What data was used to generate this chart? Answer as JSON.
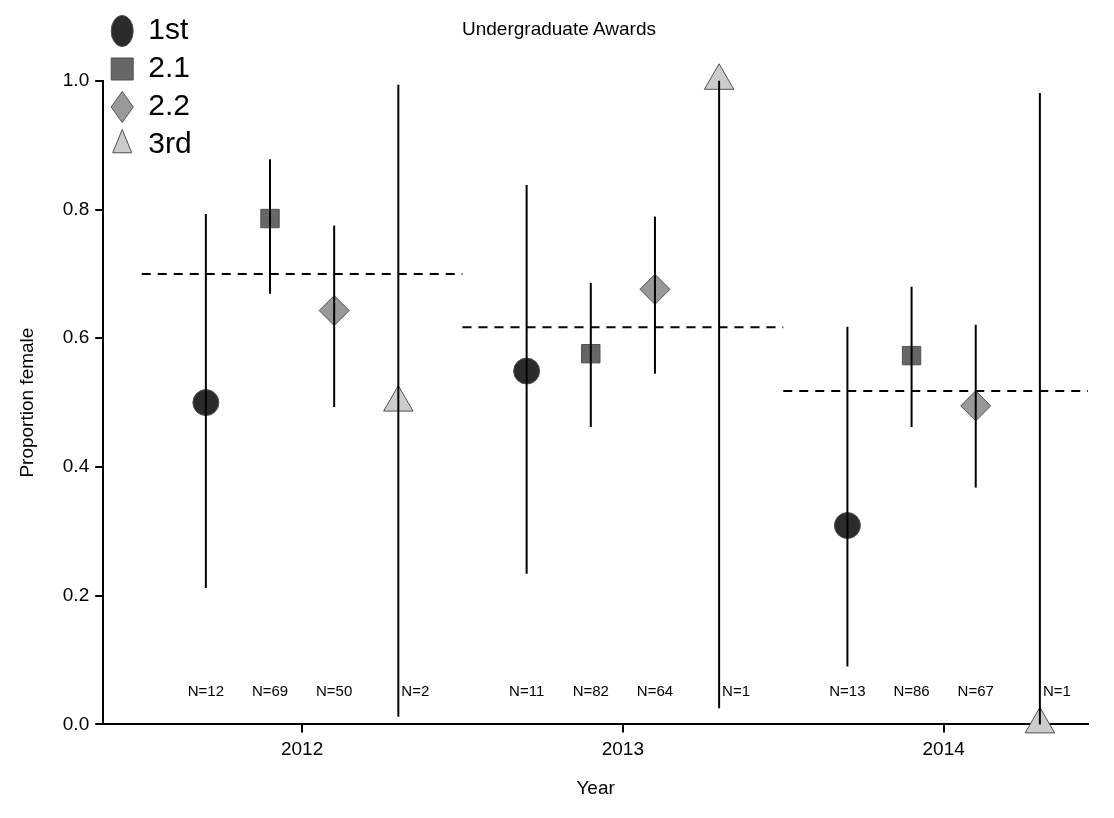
{
  "chart_data": {
    "type": "scatter",
    "title": "Undergraduate Awards",
    "xlabel": "Year",
    "ylabel": "Proportion female",
    "xlim": [
      2011.38,
      2014.45
    ],
    "xticks": [
      2012,
      2013,
      2014
    ],
    "ylim": [
      0,
      1
    ],
    "yticks": [
      {
        "value": 0,
        "label": "0.0"
      },
      0.2,
      0.4,
      0.6,
      0.8,
      {
        "value": 1,
        "label": "1.0"
      }
    ],
    "grid": false,
    "legend": "top left",
    "series": [
      {
        "name": "1st",
        "marker": "circle",
        "color": "#2b2b2b",
        "x": [
          2011.7,
          2012.7,
          2013.7
        ],
        "values": [
          0.5,
          0.549,
          0.309
        ],
        "errors": [
          [
            0.212,
            0.793
          ],
          [
            0.234,
            0.838
          ],
          [
            0.09,
            0.618
          ]
        ]
      },
      {
        "name": "2.1",
        "marker": "square",
        "color": "#666666",
        "x": [
          2011.9,
          2012.9,
          2013.9
        ],
        "values": [
          0.786,
          0.576,
          0.573
        ],
        "errors": [
          [
            0.669,
            0.878
          ],
          [
            0.462,
            0.686
          ],
          [
            0.462,
            0.68
          ]
        ]
      },
      {
        "name": "2.2",
        "marker": "diamond",
        "color": "#999999",
        "x": [
          2012.1,
          2013.1,
          2014.1
        ],
        "values": [
          0.643,
          0.676,
          0.495
        ],
        "errors": [
          [
            0.493,
            0.775
          ],
          [
            0.545,
            0.789
          ],
          [
            0.368,
            0.621
          ]
        ]
      },
      {
        "name": "3rd",
        "marker": "triangle",
        "color": "#cccccc",
        "x": [
          2012.3,
          2013.3,
          2014.3
        ],
        "values": [
          0.5,
          1.0,
          0.0
        ],
        "errors": [
          [
            0.012,
            0.994
          ],
          [
            0.025,
            1.0
          ],
          [
            0.0,
            0.981
          ]
        ]
      },
      {
        "type": "line",
        "marker": "none",
        "line_style": "dashed",
        "color": "#000000",
        "x": [
          2011.5,
          2012.5
        ],
        "values": [
          0.7,
          0.7
        ]
      },
      {
        "type": "line",
        "marker": "none",
        "line_style": "dashed",
        "color": "#000000",
        "x": [
          2012.5,
          2013.5
        ],
        "values": [
          0.617,
          0.617
        ]
      },
      {
        "type": "line",
        "marker": "none",
        "line_style": "dashed",
        "color": "#000000",
        "x": [
          2013.5,
          2014.45
        ],
        "values": [
          0.518,
          0.518
        ]
      }
    ],
    "annotations": [
      "N=12",
      "N=69",
      "N=50",
      "N=2",
      "N=11",
      "N=82",
      "N=64",
      "N=1",
      "N=13",
      "N=86",
      "N=67",
      "N=1"
    ]
  }
}
